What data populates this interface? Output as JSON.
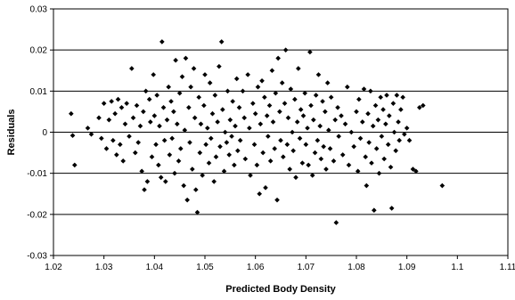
{
  "chart_data": {
    "type": "scatter",
    "title": "",
    "xlabel": "Predicted Body Density",
    "ylabel": "Residuals",
    "xlim": [
      1.02,
      1.11
    ],
    "ylim": [
      -0.03,
      0.03
    ],
    "x_ticks": [
      "1.02",
      "1.03",
      "1.04",
      "1.05",
      "1.06",
      "1.07",
      "1.08",
      "1.09",
      "1.1",
      "1.11"
    ],
    "y_ticks": [
      "0.03",
      "0.02",
      "0.01",
      "0",
      "-0.01",
      "-0.02",
      "-0.03"
    ],
    "grid": "horizontal",
    "legend": "none",
    "marker": "diamond",
    "colors": {
      "marker": "#000000",
      "grid": "#000000",
      "background": "#ffffff"
    },
    "points": [
      [
        1.0235,
        0.0045
      ],
      [
        1.0238,
        -0.0008
      ],
      [
        1.0242,
        -0.008
      ],
      [
        1.0268,
        0.001
      ],
      [
        1.0275,
        -0.0005
      ],
      [
        1.029,
        0.0035
      ],
      [
        1.0295,
        -0.0015
      ],
      [
        1.03,
        0.007
      ],
      [
        1.0305,
        -0.004
      ],
      [
        1.031,
        0.003
      ],
      [
        1.0315,
        0.0075
      ],
      [
        1.0318,
        -0.002
      ],
      [
        1.0322,
        0.0045
      ],
      [
        1.0325,
        -0.0055
      ],
      [
        1.0328,
        0.008
      ],
      [
        1.0332,
        -0.003
      ],
      [
        1.0335,
        0.006
      ],
      [
        1.0338,
        -0.007
      ],
      [
        1.0342,
        0.002
      ],
      [
        1.0345,
        0.007
      ],
      [
        1.035,
        -0.001
      ],
      [
        1.0355,
        0.0155
      ],
      [
        1.0358,
        0.0035
      ],
      [
        1.0362,
        -0.005
      ],
      [
        1.0365,
        0.0065
      ],
      [
        1.0368,
        -0.0025
      ],
      [
        1.0372,
        0.0015
      ],
      [
        1.0375,
        -0.0095
      ],
      [
        1.0378,
        0.005
      ],
      [
        1.038,
        -0.014
      ],
      [
        1.0383,
        0.01
      ],
      [
        1.0386,
        -0.012
      ],
      [
        1.039,
        0.008
      ],
      [
        1.0392,
        0.0025
      ],
      [
        1.0395,
        -0.006
      ],
      [
        1.0398,
        0.014
      ],
      [
        1.04,
        0.004
      ],
      [
        1.0403,
        -0.003
      ],
      [
        1.0405,
        0.009
      ],
      [
        1.0408,
        -0.008
      ],
      [
        1.041,
        0.0015
      ],
      [
        1.0413,
        -0.011
      ],
      [
        1.0415,
        0.022
      ],
      [
        1.0418,
        0.006
      ],
      [
        1.042,
        -0.002
      ],
      [
        1.0422,
        -0.012
      ],
      [
        1.0425,
        0.003
      ],
      [
        1.0428,
        0.011
      ],
      [
        1.043,
        -0.0055
      ],
      [
        1.0433,
        0.0075
      ],
      [
        1.0435,
        -0.0015
      ],
      [
        1.0438,
        0.005
      ],
      [
        1.044,
        -0.01
      ],
      [
        1.0442,
        0.0175
      ],
      [
        1.0445,
        0.002
      ],
      [
        1.0448,
        -0.007
      ],
      [
        1.045,
        0.0095
      ],
      [
        1.0452,
        -0.004
      ],
      [
        1.0455,
        0.0135
      ],
      [
        1.0458,
        -0.013
      ],
      [
        1.046,
        0.0005
      ],
      [
        1.0462,
        0.018
      ],
      [
        1.0465,
        -0.0165
      ],
      [
        1.0468,
        0.006
      ],
      [
        1.047,
        -0.0025
      ],
      [
        1.0472,
        0.011
      ],
      [
        1.0475,
        -0.009
      ],
      [
        1.0478,
        0.0155
      ],
      [
        1.048,
        0.0035
      ],
      [
        1.0482,
        -0.014
      ],
      [
        1.0485,
        -0.0195
      ],
      [
        1.0488,
        0.0085
      ],
      [
        1.049,
        -0.005
      ],
      [
        1.0492,
        0.002
      ],
      [
        1.0495,
        -0.0105
      ],
      [
        1.0498,
        0.0065
      ],
      [
        1.05,
        0.014
      ],
      [
        1.0502,
        -0.003
      ],
      [
        1.0505,
        0.001
      ],
      [
        1.0508,
        -0.0075
      ],
      [
        1.051,
        0.012
      ],
      [
        1.0512,
        -0.0015
      ],
      [
        1.0515,
        0.0045
      ],
      [
        1.0518,
        -0.012
      ],
      [
        1.052,
        0.009
      ],
      [
        1.0522,
        -0.006
      ],
      [
        1.0525,
        0.0025
      ],
      [
        1.0528,
        0.016
      ],
      [
        1.053,
        -0.0035
      ],
      [
        1.0533,
        0.022
      ],
      [
        1.0535,
        0.0055
      ],
      [
        1.0538,
        -0.0095
      ],
      [
        1.054,
        0.0
      ],
      [
        1.0543,
        -0.0025
      ],
      [
        1.0545,
        0.01
      ],
      [
        1.0548,
        -0.0055
      ],
      [
        1.055,
        0.003
      ],
      [
        1.0553,
        -0.001
      ],
      [
        1.0555,
        0.0075
      ],
      [
        1.0558,
        -0.008
      ],
      [
        1.056,
        0.0015
      ],
      [
        1.0563,
        0.013
      ],
      [
        1.0565,
        -0.0045
      ],
      [
        1.0568,
        0.006
      ],
      [
        1.057,
        -0.002
      ],
      [
        1.0575,
        0.01
      ],
      [
        1.0578,
        0.0035
      ],
      [
        1.058,
        -0.0065
      ],
      [
        1.0585,
        0.014
      ],
      [
        1.0588,
        0.001
      ],
      [
        1.059,
        -0.0105
      ],
      [
        1.0595,
        0.007
      ],
      [
        1.0598,
        -0.003
      ],
      [
        1.06,
        0.0045
      ],
      [
        1.0603,
        -0.008
      ],
      [
        1.0605,
        0.011
      ],
      [
        1.0608,
        -0.015
      ],
      [
        1.061,
        0.002
      ],
      [
        1.0613,
        0.0125
      ],
      [
        1.0615,
        -0.005
      ],
      [
        1.0618,
        0.0085
      ],
      [
        1.062,
        -0.0135
      ],
      [
        1.0623,
        0.004
      ],
      [
        1.0625,
        -0.001
      ],
      [
        1.0628,
        0.0065
      ],
      [
        1.063,
        -0.007
      ],
      [
        1.0633,
        0.015
      ],
      [
        1.0635,
        0.0025
      ],
      [
        1.0638,
        -0.004
      ],
      [
        1.064,
        0.0095
      ],
      [
        1.0643,
        -0.0165
      ],
      [
        1.0645,
        0.018
      ],
      [
        1.0648,
        0.005
      ],
      [
        1.065,
        -0.002
      ],
      [
        1.0653,
        0.012
      ],
      [
        1.0655,
        -0.006
      ],
      [
        1.0658,
        0.007
      ],
      [
        1.066,
        0.02
      ],
      [
        1.0663,
        -0.003
      ],
      [
        1.0665,
        0.0035
      ],
      [
        1.0668,
        -0.009
      ],
      [
        1.067,
        0.0105
      ],
      [
        1.0673,
        0.0
      ],
      [
        1.0675,
        -0.0045
      ],
      [
        1.0678,
        0.008
      ],
      [
        1.068,
        -0.011
      ],
      [
        1.0683,
        0.0025
      ],
      [
        1.0685,
        0.0155
      ],
      [
        1.0688,
        -0.0015
      ],
      [
        1.069,
        0.0055
      ],
      [
        1.0693,
        -0.0075
      ],
      [
        1.0695,
        0.004
      ],
      [
        1.0698,
        0.0095
      ],
      [
        1.07,
        -0.003
      ],
      [
        1.0703,
        0.001
      ],
      [
        1.0705,
        -0.008
      ],
      [
        1.0708,
        0.0195
      ],
      [
        1.071,
        0.0065
      ],
      [
        1.0713,
        -0.0105
      ],
      [
        1.0715,
        0.003
      ],
      [
        1.0718,
        -0.005
      ],
      [
        1.072,
        0.009
      ],
      [
        1.0723,
        -0.002
      ],
      [
        1.0725,
        0.014
      ],
      [
        1.0728,
        0.0015
      ],
      [
        1.073,
        -0.0065
      ],
      [
        1.0733,
        0.0075
      ],
      [
        1.0735,
        -0.0035
      ],
      [
        1.0738,
        0.005
      ],
      [
        1.074,
        -0.009
      ],
      [
        1.0743,
        0.012
      ],
      [
        1.0745,
        0.0005
      ],
      [
        1.0748,
        -0.004
      ],
      [
        1.075,
        0.0085
      ],
      [
        1.0755,
        -0.007
      ],
      [
        1.0758,
        0.003
      ],
      [
        1.076,
        -0.022
      ],
      [
        1.0763,
        0.006
      ],
      [
        1.0765,
        -0.001
      ],
      [
        1.077,
        0.004
      ],
      [
        1.0773,
        -0.0055
      ],
      [
        1.0778,
        0.002
      ],
      [
        1.0782,
        0.011
      ],
      [
        1.0785,
        -0.008
      ],
      [
        1.079,
        0.0
      ],
      [
        1.0795,
        -0.0035
      ],
      [
        1.08,
        0.005
      ],
      [
        1.0803,
        -0.0095
      ],
      [
        1.0805,
        0.008
      ],
      [
        1.0808,
        -0.0015
      ],
      [
        1.0812,
        0.0025
      ],
      [
        1.0815,
        0.0105
      ],
      [
        1.0818,
        -0.006
      ],
      [
        1.082,
        -0.013
      ],
      [
        1.0823,
        0.0045
      ],
      [
        1.0825,
        -0.0025
      ],
      [
        1.0828,
        0.01
      ],
      [
        1.083,
        -0.0075
      ],
      [
        1.0833,
        0.0015
      ],
      [
        1.0835,
        -0.019
      ],
      [
        1.0838,
        0.0065
      ],
      [
        1.084,
        -0.004
      ],
      [
        1.0843,
        0.003
      ],
      [
        1.0845,
        -0.01
      ],
      [
        1.0848,
        0.0085
      ],
      [
        1.085,
        -0.001
      ],
      [
        1.0853,
        0.0055
      ],
      [
        1.0855,
        -0.0065
      ],
      [
        1.0858,
        0.002
      ],
      [
        1.086,
        0.009
      ],
      [
        1.0863,
        -0.003
      ],
      [
        1.0865,
        0.004
      ],
      [
        1.0868,
        -0.0085
      ],
      [
        1.087,
        -0.0185
      ],
      [
        1.0873,
        0.007
      ],
      [
        1.0875,
        0.0
      ],
      [
        1.0878,
        -0.0045
      ],
      [
        1.088,
        0.009
      ],
      [
        1.0883,
        0.0025
      ],
      [
        1.0885,
        -0.002
      ],
      [
        1.0888,
        0.0055
      ],
      [
        1.0892,
        0.0085
      ],
      [
        1.0895,
        -0.0005
      ],
      [
        1.09,
        0.001
      ],
      [
        1.0905,
        -0.002
      ],
      [
        1.0912,
        -0.009
      ],
      [
        1.0918,
        -0.0095
      ],
      [
        1.0925,
        0.006
      ],
      [
        1.0932,
        0.0065
      ],
      [
        1.097,
        -0.013
      ]
    ]
  }
}
